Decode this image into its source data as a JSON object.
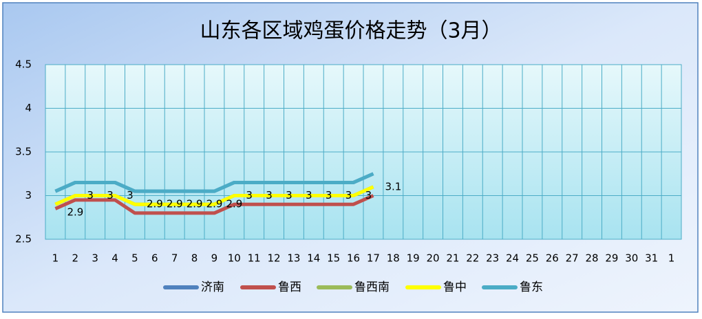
{
  "chart_data": {
    "type": "line",
    "title": "山东各区域鸡蛋价格走势（3月）",
    "categories": [
      "1",
      "2",
      "3",
      "4",
      "5",
      "6",
      "7",
      "8",
      "9",
      "10",
      "11",
      "12",
      "13",
      "14",
      "15",
      "16",
      "17",
      "18",
      "19",
      "20",
      "21",
      "22",
      "23",
      "24",
      "25",
      "26",
      "27",
      "28",
      "29",
      "30",
      "31",
      "1"
    ],
    "ylim": [
      2.5,
      4.5
    ],
    "yticks": [
      2.5,
      3,
      3.5,
      4,
      4.5
    ],
    "grid": true,
    "legend": "bottom",
    "series": [
      {
        "name": "济南",
        "color": "#4f81bd",
        "values": [
          3.05,
          3.15,
          3.15,
          3.15,
          3.05,
          3.05,
          3.05,
          3.05,
          3.05,
          3.15,
          3.15,
          3.15,
          3.15,
          3.15,
          3.15,
          3.15,
          3.25,
          null,
          null,
          null,
          null,
          null,
          null,
          null,
          null,
          null,
          null,
          null,
          null,
          null,
          null,
          null
        ]
      },
      {
        "name": "鲁西",
        "color": "#c0504d",
        "values": [
          2.85,
          2.95,
          2.95,
          2.95,
          2.8,
          2.8,
          2.8,
          2.8,
          2.8,
          2.9,
          2.9,
          2.9,
          2.9,
          2.9,
          2.9,
          2.9,
          3,
          null,
          null,
          null,
          null,
          null,
          null,
          null,
          null,
          null,
          null,
          null,
          null,
          null,
          null,
          null
        ]
      },
      {
        "name": "鲁西南",
        "color": "#9bbb59",
        "values": [
          2.9,
          3,
          3,
          3,
          2.9,
          2.9,
          2.9,
          2.9,
          2.9,
          3,
          3,
          3,
          3,
          3,
          3,
          3,
          3.1,
          null,
          null,
          null,
          null,
          null,
          null,
          null,
          null,
          null,
          null,
          null,
          null,
          null,
          null,
          null
        ]
      },
      {
        "name": "鲁中",
        "color": "#ffff00",
        "data_labels": true,
        "values": [
          2.9,
          3,
          3,
          3,
          2.9,
          2.9,
          2.9,
          2.9,
          2.9,
          3,
          3,
          3,
          3,
          3,
          3,
          3,
          3.1,
          null,
          null,
          null,
          null,
          null,
          null,
          null,
          null,
          null,
          null,
          null,
          null,
          null,
          null,
          null
        ]
      },
      {
        "name": "鲁东",
        "color": "#4bacc6",
        "values": [
          3.05,
          3.15,
          3.15,
          3.15,
          3.05,
          3.05,
          3.05,
          3.05,
          3.05,
          3.15,
          3.15,
          3.15,
          3.15,
          3.15,
          3.15,
          3.15,
          3.25,
          null,
          null,
          null,
          null,
          null,
          null,
          null,
          null,
          null,
          null,
          null,
          null,
          null,
          null,
          null
        ]
      }
    ]
  }
}
